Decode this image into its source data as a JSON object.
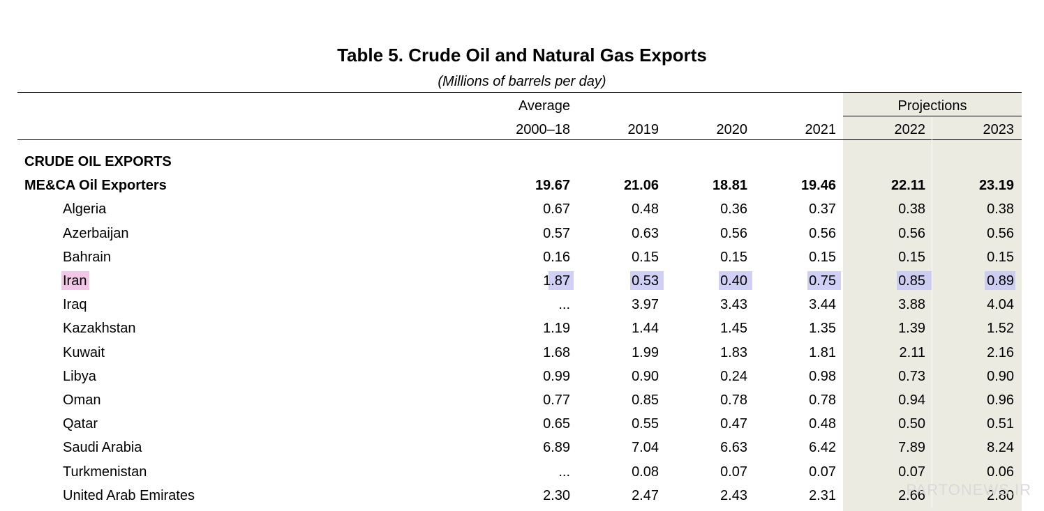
{
  "title": "Table 5. Crude Oil and Natural Gas Exports",
  "subtitle": "(Millions of barrels per day)",
  "header": {
    "average_label": "Average",
    "projections_label": "Projections",
    "columns": [
      "2000–18",
      "2019",
      "2020",
      "2021",
      "2022",
      "2023"
    ]
  },
  "rows": [
    {
      "kind": "section",
      "label": "CRUDE OIL EXPORTS",
      "values": []
    },
    {
      "kind": "group",
      "label": "ME&CA Oil Exporters",
      "values": [
        "19.67",
        "21.06",
        "18.81",
        "19.46",
        "22.11",
        "23.19"
      ]
    },
    {
      "kind": "country",
      "label": "Algeria",
      "values": [
        "0.67",
        "0.48",
        "0.36",
        "0.37",
        "0.38",
        "0.38"
      ]
    },
    {
      "kind": "country",
      "label": "Azerbaijan",
      "values": [
        "0.57",
        "0.63",
        "0.56",
        "0.56",
        "0.56",
        "0.56"
      ]
    },
    {
      "kind": "country",
      "label": "Bahrain",
      "values": [
        "0.16",
        "0.15",
        "0.15",
        "0.15",
        "0.15",
        "0.15"
      ]
    },
    {
      "kind": "country",
      "label": "Iran",
      "values": [
        "1.87",
        "0.53",
        "0.40",
        "0.75",
        "0.85",
        "0.89"
      ],
      "highlighted": true
    },
    {
      "kind": "country",
      "label": "Iraq",
      "values": [
        "...",
        "3.97",
        "3.43",
        "3.44",
        "3.88",
        "4.04"
      ]
    },
    {
      "kind": "country",
      "label": "Kazakhstan",
      "values": [
        "1.19",
        "1.44",
        "1.45",
        "1.35",
        "1.39",
        "1.52"
      ]
    },
    {
      "kind": "country",
      "label": "Kuwait",
      "values": [
        "1.68",
        "1.99",
        "1.83",
        "1.81",
        "2.11",
        "2.16"
      ]
    },
    {
      "kind": "country",
      "label": "Libya",
      "values": [
        "0.99",
        "0.90",
        "0.24",
        "0.98",
        "0.73",
        "0.90"
      ]
    },
    {
      "kind": "country",
      "label": "Oman",
      "values": [
        "0.77",
        "0.85",
        "0.78",
        "0.78",
        "0.94",
        "0.96"
      ]
    },
    {
      "kind": "country",
      "label": "Qatar",
      "values": [
        "0.65",
        "0.55",
        "0.47",
        "0.48",
        "0.50",
        "0.51"
      ]
    },
    {
      "kind": "country",
      "label": "Saudi Arabia",
      "values": [
        "6.89",
        "7.04",
        "6.63",
        "6.42",
        "7.89",
        "8.24"
      ]
    },
    {
      "kind": "country",
      "label": "Turkmenistan",
      "values": [
        "...",
        "0.08",
        "0.07",
        "0.07",
        "0.07",
        "0.06"
      ]
    },
    {
      "kind": "country",
      "label": "United Arab Emirates",
      "values": [
        "2.30",
        "2.47",
        "2.43",
        "2.31",
        "2.66",
        "2.80"
      ]
    }
  ],
  "watermark": "PARTONEWS.IR",
  "colors": {
    "projection_shade": "#ecebe1",
    "highlight_blue": "#c8c8f5",
    "highlight_pink": "#f2c6e6"
  }
}
